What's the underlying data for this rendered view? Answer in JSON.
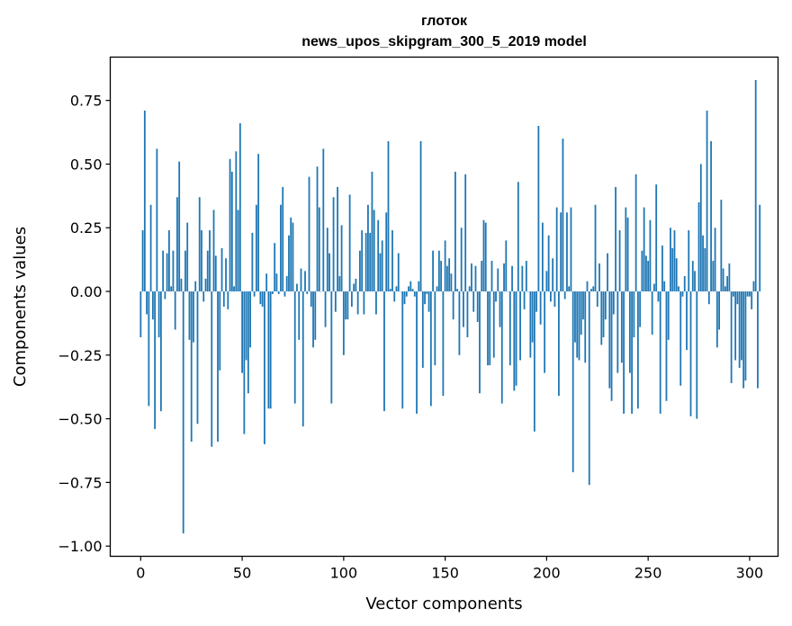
{
  "chart_data": {
    "type": "bar",
    "title_line1": "глоток",
    "title_line2": "news_upos_skipgram_300_5_2019 model",
    "xlabel": "Vector components",
    "ylabel": "Components values",
    "xlim": [
      -15,
      314
    ],
    "ylim": [
      -1.04,
      0.92
    ],
    "xticks": [
      0,
      50,
      100,
      150,
      200,
      250,
      300
    ],
    "xtick_labels": [
      "0",
      "50",
      "100",
      "150",
      "200",
      "250",
      "300"
    ],
    "yticks": [
      -1.0,
      -0.75,
      -0.5,
      -0.25,
      0.0,
      0.25,
      0.5,
      0.75
    ],
    "ytick_labels": [
      "−1.00",
      "−0.75",
      "−0.50",
      "−0.25",
      "0.00",
      "0.25",
      "0.50",
      "0.75"
    ],
    "grid": false,
    "bar_color": "#1f77b4",
    "values": [
      -0.18,
      0.24,
      0.71,
      -0.09,
      -0.45,
      0.34,
      -0.11,
      -0.54,
      0.56,
      -0.18,
      -0.47,
      0.16,
      -0.03,
      0.15,
      0.24,
      0.02,
      0.16,
      -0.15,
      0.37,
      0.51,
      0.05,
      -0.95,
      0.16,
      0.27,
      -0.19,
      -0.59,
      -0.2,
      0.04,
      -0.52,
      0.37,
      0.24,
      -0.04,
      0.05,
      0.16,
      0.24,
      -0.61,
      0.32,
      0.14,
      -0.59,
      -0.31,
      0.17,
      -0.06,
      0.13,
      -0.07,
      0.52,
      0.47,
      0.02,
      0.55,
      0.32,
      0.66,
      -0.32,
      -0.56,
      -0.27,
      -0.4,
      -0.22,
      0.23,
      -0.02,
      0.34,
      0.54,
      -0.05,
      -0.06,
      -0.6,
      0.07,
      -0.46,
      -0.46,
      -0.01,
      0.19,
      0.07,
      -0.01,
      0.34,
      0.41,
      -0.02,
      0.06,
      0.22,
      0.29,
      0.27,
      -0.44,
      0.03,
      -0.19,
      0.09,
      -0.53,
      0.08,
      -0.01,
      0.45,
      -0.06,
      -0.22,
      -0.19,
      0.49,
      0.33,
      0.0,
      0.56,
      -0.14,
      0.25,
      0.15,
      -0.44,
      0.37,
      -0.08,
      0.41,
      0.06,
      0.26,
      -0.25,
      -0.11,
      -0.11,
      0.38,
      -0.06,
      0.03,
      0.05,
      -0.09,
      0.16,
      0.24,
      -0.09,
      0.23,
      0.34,
      0.23,
      0.47,
      0.32,
      -0.09,
      0.28,
      0.15,
      0.2,
      -0.47,
      0.31,
      0.59,
      0.01,
      0.24,
      -0.04,
      0.02,
      0.15,
      0.0,
      -0.46,
      -0.05,
      -0.02,
      0.02,
      0.04,
      0.01,
      -0.02,
      -0.48,
      0.04,
      0.59,
      -0.3,
      -0.05,
      -0.01,
      -0.08,
      -0.45,
      0.16,
      -0.29,
      0.02,
      0.16,
      0.12,
      -0.41,
      0.2,
      0.1,
      0.13,
      0.07,
      -0.11,
      0.47,
      0.01,
      -0.25,
      0.25,
      -0.14,
      0.46,
      -0.18,
      0.02,
      0.11,
      -0.08,
      0.1,
      -0.12,
      -0.4,
      0.12,
      0.28,
      0.27,
      -0.29,
      -0.29,
      0.12,
      -0.26,
      -0.04,
      0.09,
      -0.14,
      -0.44,
      0.11,
      0.2,
      0.0,
      -0.29,
      0.1,
      -0.39,
      -0.37,
      0.43,
      -0.27,
      0.1,
      -0.07,
      0.12,
      0.0,
      -0.26,
      -0.2,
      -0.55,
      -0.08,
      0.65,
      -0.13,
      0.27,
      -0.32,
      0.08,
      0.22,
      -0.04,
      0.13,
      -0.06,
      0.33,
      -0.41,
      0.31,
      0.6,
      -0.03,
      0.31,
      0.02,
      0.33,
      -0.71,
      -0.2,
      -0.26,
      -0.27,
      -0.17,
      -0.11,
      -0.28,
      0.04,
      -0.76,
      0.01,
      0.02,
      0.34,
      -0.06,
      0.11,
      -0.21,
      -0.18,
      -0.11,
      0.15,
      -0.38,
      -0.43,
      -0.09,
      0.41,
      -0.32,
      0.24,
      -0.28,
      -0.48,
      0.33,
      0.29,
      -0.32,
      -0.48,
      -0.18,
      0.46,
      -0.46,
      -0.14,
      0.16,
      0.33,
      0.14,
      0.12,
      0.28,
      -0.17,
      0.03,
      0.42,
      -0.04,
      -0.48,
      0.18,
      0.04,
      -0.43,
      -0.19,
      0.25,
      0.17,
      0.24,
      0.13,
      0.02,
      -0.37,
      -0.02,
      0.06,
      -0.23,
      0.24,
      -0.49,
      0.12,
      0.08,
      -0.5,
      0.35,
      0.5,
      0.22,
      0.17,
      0.71,
      -0.05,
      0.59,
      0.12,
      0.25,
      -0.22,
      -0.15,
      0.36,
      0.09,
      0.02,
      0.06,
      0.11,
      -0.36,
      -0.02,
      -0.27,
      -0.05,
      -0.3,
      -0.27,
      -0.38,
      -0.35,
      -0.02,
      -0.02,
      -0.07,
      0.04,
      0.83,
      -0.38,
      0.34
    ]
  }
}
